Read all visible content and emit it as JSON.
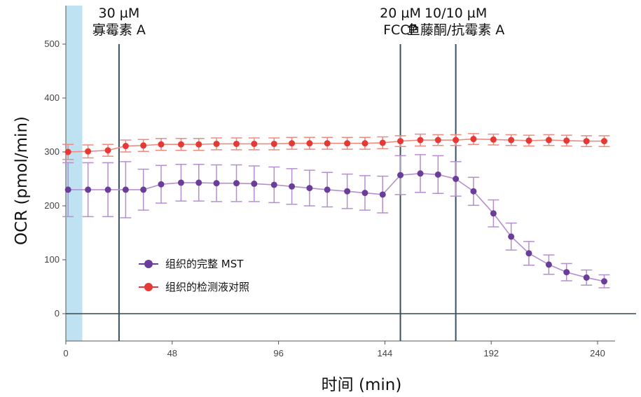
{
  "chart_data": {
    "type": "line",
    "title": "",
    "xlabel": "时间 (min)",
    "ylabel": "OCR (pmol/min)",
    "xlim": [
      0,
      244
    ],
    "ylim": [
      -50,
      560
    ],
    "x_ticks": [
      0,
      48,
      96,
      144,
      192,
      240
    ],
    "y_ticks": [
      0,
      100,
      200,
      300,
      400,
      500
    ],
    "shaded_region": {
      "x0": 0,
      "x1": 3,
      "color": "#bfe2f2"
    },
    "annotations": [
      {
        "x": 24,
        "lines": [
          "30 µM",
          "寡霉素 A"
        ]
      },
      {
        "x": 151,
        "lines": [
          "20 µM",
          "FCCP"
        ]
      },
      {
        "x": 176,
        "lines": [
          "10/10 µM",
          "鱼藤酮/抗霉素 A"
        ]
      }
    ],
    "series": [
      {
        "name": "组织的完整 MST",
        "color": "#6a3d9a",
        "error_color": "#b48fd0",
        "x": [
          1,
          10,
          19,
          27,
          35,
          43,
          52,
          60,
          68,
          77,
          85,
          94,
          102,
          110,
          118,
          127,
          135,
          143,
          151,
          160,
          168,
          176,
          184,
          193,
          201,
          209,
          218,
          226,
          235,
          243
        ],
        "y": [
          230,
          230,
          230,
          230,
          230,
          240,
          243,
          243,
          242,
          242,
          241,
          239,
          236,
          233,
          230,
          227,
          224,
          221,
          257,
          260,
          258,
          250,
          227,
          186,
          143,
          112,
          91,
          77,
          67,
          60
        ],
        "err": [
          50,
          50,
          50,
          52,
          38,
          35,
          34,
          34,
          34,
          34,
          33,
          33,
          33,
          33,
          32,
          32,
          32,
          34,
          36,
          35,
          35,
          32,
          26,
          25,
          25,
          22,
          18,
          16,
          14,
          12
        ]
      },
      {
        "name": "组织的检测液对照",
        "color": "#e53935",
        "error_color": "#ef8a80",
        "x": [
          1,
          10,
          19,
          27,
          35,
          43,
          52,
          60,
          68,
          77,
          85,
          94,
          102,
          110,
          118,
          127,
          135,
          143,
          151,
          160,
          168,
          176,
          184,
          193,
          201,
          209,
          218,
          226,
          235,
          243
        ],
        "y": [
          300,
          301,
          303,
          311,
          312,
          314,
          314,
          314,
          315,
          315,
          315,
          315,
          316,
          316,
          316,
          316,
          316,
          317,
          320,
          322,
          322,
          322,
          324,
          323,
          322,
          321,
          322,
          321,
          320,
          320
        ],
        "err": [
          14,
          12,
          11,
          11,
          11,
          11,
          11,
          11,
          11,
          11,
          11,
          11,
          11,
          11,
          11,
          11,
          11,
          11,
          10,
          11,
          10,
          10,
          10,
          10,
          10,
          10,
          10,
          10,
          10,
          10
        ]
      }
    ]
  },
  "legend": {
    "position": "lower-left",
    "entries": [
      {
        "label": "组织的完整 MST",
        "color": "#6a3d9a"
      },
      {
        "label": "组织的检测液对照",
        "color": "#e53935"
      }
    ]
  }
}
